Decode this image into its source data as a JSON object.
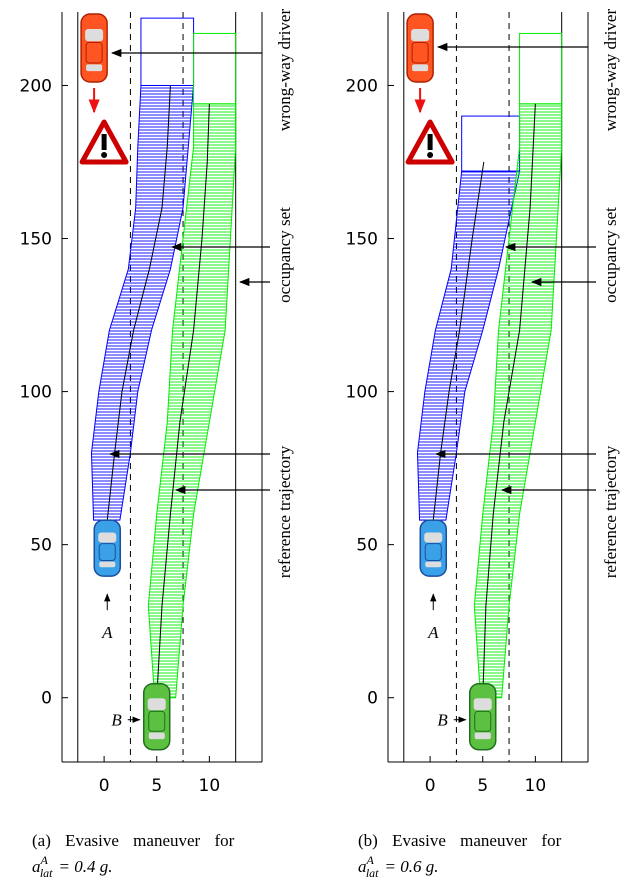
{
  "chart_data": [
    {
      "type": "line",
      "caption": "(a) Evasive maneuver for",
      "caption_math": {
        "base": "a",
        "sup": "A",
        "sub": "lat",
        "rest": "= 0.4  g."
      },
      "annotations": [
        "wrong-way driver",
        "occupancy set",
        "reference trajectory"
      ],
      "xlim": [
        -4,
        15
      ],
      "ylim": [
        -21,
        224
      ],
      "xticks": [
        0,
        5,
        10
      ],
      "yticks": [
        0,
        50,
        100,
        150,
        200
      ],
      "lane_lines": {
        "solid": [
          -2.5,
          12.5
        ],
        "dashed": [
          2.5,
          7.5
        ]
      },
      "series": [
        {
          "name": "A",
          "color": "#0000ff",
          "x": [
            0.3,
            1.0,
            1.7,
            2.8,
            4.3,
            5.5,
            6.0,
            6.3
          ],
          "y": [
            58,
            80,
            100,
            120,
            140,
            160,
            180,
            200
          ],
          "occupancy": {
            "y": [
              58,
              80,
              100,
              120,
              140,
              160,
              180,
              200
            ],
            "left": [
              -1,
              -1.2,
              -0.5,
              0.5,
              2.3,
              3,
              3.2,
              3.5
            ],
            "right": [
              1.5,
              2.5,
              3.2,
              4.5,
              6.3,
              7.5,
              8,
              8.5
            ],
            "top": 222
          }
        },
        {
          "name": "B",
          "color": "#00ee00",
          "x": [
            5,
            5.5,
            6.3,
            7.2,
            8.5,
            9.3,
            9.8,
            10.0
          ],
          "y": [
            0,
            30,
            60,
            90,
            120,
            150,
            175,
            194
          ],
          "occupancy": {
            "y": [
              0,
              30,
              60,
              90,
              120,
              150,
              180,
              194
            ],
            "left": [
              4.8,
              4.2,
              5,
              6,
              6.5,
              7.5,
              8.5,
              8.5
            ],
            "right": [
              6.8,
              7.5,
              8.5,
              10,
              11.5,
              12,
              12.5,
              12.5
            ],
            "top": 217
          }
        }
      ]
    },
    {
      "type": "line",
      "caption": "(b) Evasive maneuver for",
      "caption_math": {
        "base": "a",
        "sup": "A",
        "sub": "lat",
        "rest": "= 0.6  g."
      },
      "annotations": [
        "wrong-way driver",
        "occupancy set",
        "reference trajectory"
      ],
      "xlim": [
        -4,
        15
      ],
      "ylim": [
        -21,
        224
      ],
      "xticks": [
        0,
        5,
        10
      ],
      "yticks": [
        0,
        50,
        100,
        150,
        200
      ],
      "lane_lines": {
        "solid": [
          -2.5,
          12.5
        ],
        "dashed": [
          2.5,
          7.5
        ]
      },
      "series": [
        {
          "name": "A",
          "color": "#0000ff",
          "x": [
            0.3,
            1.0,
            1.8,
            2.8,
            4.0,
            5.1
          ],
          "y": [
            58,
            80,
            100,
            120,
            150,
            175
          ],
          "occupancy": {
            "y": [
              58,
              80,
              100,
              120,
              140,
              172
            ],
            "left": [
              -1,
              -1.2,
              -0.5,
              0.5,
              2,
              3
            ],
            "right": [
              1.5,
              2.5,
              3.3,
              5,
              6.5,
              8.5
            ],
            "top": 190
          }
        },
        {
          "name": "B",
          "color": "#00ee00",
          "x": [
            5,
            5.3,
            6.0,
            7.0,
            8.5,
            9.5,
            10.0
          ],
          "y": [
            0,
            30,
            60,
            90,
            120,
            160,
            194
          ],
          "occupancy": {
            "y": [
              0,
              30,
              60,
              90,
              120,
              150,
              180,
              194
            ],
            "left": [
              4.8,
              4.2,
              5,
              6,
              6.5,
              7.5,
              8.5,
              8.5
            ],
            "right": [
              6.8,
              7.5,
              8.5,
              10,
              11.5,
              12,
              12.5,
              12.5
            ],
            "top": 217
          }
        }
      ]
    }
  ]
}
